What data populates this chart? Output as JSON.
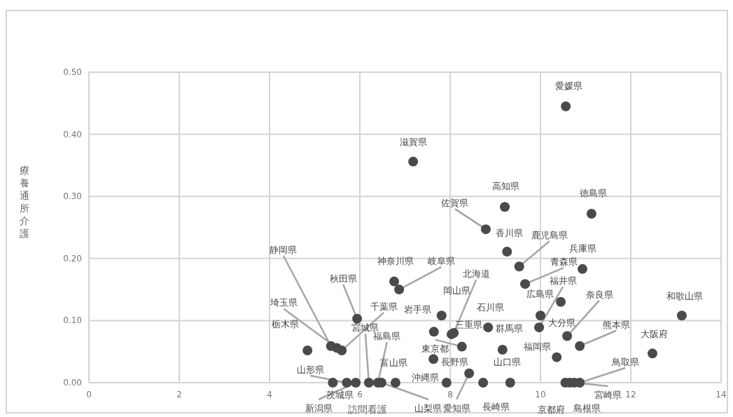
{
  "chart_data": {
    "type": "scatter",
    "xlabel": "訪問看護",
    "ylabel": "療養通所介護",
    "xlim": [
      0,
      14
    ],
    "xticks": [
      0,
      2,
      4,
      6,
      8,
      10,
      12,
      14
    ],
    "ylim": [
      0,
      0.5
    ],
    "yticks": [
      {
        "value": 0,
        "label": "0.00"
      },
      {
        "value": 0.1,
        "label": "0.10"
      },
      {
        "value": 0.2,
        "label": "0.20"
      },
      {
        "value": 0.3,
        "label": "0.30"
      },
      {
        "value": 0.4,
        "label": "0.40"
      },
      {
        "value": 0.5,
        "label": "0.50"
      }
    ],
    "grid": true,
    "marker": "circle",
    "color": "#4a4a4a",
    "x": [
      10.56,
      7.18,
      9.21,
      11.13,
      8.79,
      9.26,
      9.53,
      10.93,
      9.66,
      9.97,
      10.45,
      10.0,
      10.36,
      10.59,
      10.87,
      12.48,
      13.13,
      10.87,
      10.75,
      10.65,
      10.55,
      9.33,
      8.84,
      9.16,
      8.73,
      8.42,
      7.92,
      6.48,
      7.63,
      8.26,
      8.03,
      8.08,
      7.81,
      7.64,
      6.76,
      6.87,
      6.79,
      6.4,
      6.2,
      5.91,
      5.71,
      5.4,
      5.6,
      5.94,
      5.49,
      5.36,
      4.84
    ],
    "values": [
      0.445,
      0.356,
      0.283,
      0.272,
      0.247,
      0.211,
      0.187,
      0.183,
      0.159,
      0.089,
      0.13,
      0.108,
      0.041,
      0.075,
      0.059,
      0.047,
      0.108,
      0,
      0,
      0,
      0,
      0,
      0.089,
      0.053,
      0,
      0.015,
      0,
      0,
      0.038,
      0.058,
      0.078,
      0.08,
      0.108,
      0.082,
      0.163,
      0.15,
      0,
      0,
      0,
      0,
      0,
      0,
      0.052,
      0.103,
      0.056,
      0.059,
      0.052
    ],
    "annotations": [
      {
        "text": "愛媛県",
        "x": 10.56,
        "y": 0.445
      },
      {
        "text": "滋賀県",
        "x": 7.18,
        "y": 0.356
      },
      {
        "text": "高知県",
        "x": 9.21,
        "y": 0.283
      },
      {
        "text": "徳島県",
        "x": 11.13,
        "y": 0.272
      },
      {
        "text": "佐賀県",
        "x": 8.79,
        "y": 0.247
      },
      {
        "text": "香川県",
        "x": 9.26,
        "y": 0.211
      },
      {
        "text": "鹿児島県",
        "x": 9.53,
        "y": 0.187
      },
      {
        "text": "兵庫県",
        "x": 10.93,
        "y": 0.183
      },
      {
        "text": "青森県",
        "x": 9.66,
        "y": 0.159
      },
      {
        "text": "福井県",
        "x": 9.97,
        "y": 0.089
      },
      {
        "text": "広島県",
        "x": 10.45,
        "y": 0.13
      },
      {
        "text": "大分県",
        "x": 10.0,
        "y": 0.108
      },
      {
        "text": "福岡県",
        "x": 10.36,
        "y": 0.041
      },
      {
        "text": "奈良県",
        "x": 10.59,
        "y": 0.075
      },
      {
        "text": "熊本県",
        "x": 10.87,
        "y": 0.059
      },
      {
        "text": "大阪府",
        "x": 12.48,
        "y": 0.047
      },
      {
        "text": "和歌山県",
        "x": 13.13,
        "y": 0.108
      },
      {
        "text": "鳥取県",
        "x": 10.87,
        "y": 0
      },
      {
        "text": "宮崎県",
        "x": 10.75,
        "y": 0
      },
      {
        "text": "島根県",
        "x": 10.65,
        "y": 0
      },
      {
        "text": "京都府",
        "x": 10.55,
        "y": 0
      },
      {
        "text": "山口県",
        "x": 9.33,
        "y": 0
      },
      {
        "text": "石川県",
        "x": 8.84,
        "y": 0.089
      },
      {
        "text": "群馬県",
        "x": 9.16,
        "y": 0.053
      },
      {
        "text": "長崎県",
        "x": 8.73,
        "y": 0
      },
      {
        "text": "愛知県",
        "x": 8.42,
        "y": 0.015
      },
      {
        "text": "沖縄県",
        "x": 7.92,
        "y": 0
      },
      {
        "text": "山梨県",
        "x": 6.48,
        "y": 0
      },
      {
        "text": "長野県",
        "x": 7.63,
        "y": 0.038
      },
      {
        "text": "東京都",
        "x": 8.26,
        "y": 0.058
      },
      {
        "text": "三重県",
        "x": 8.03,
        "y": 0.078
      },
      {
        "text": "北海道",
        "x": 8.08,
        "y": 0.08
      },
      {
        "text": "岡山県",
        "x": 7.81,
        "y": 0.108
      },
      {
        "text": "岩手県",
        "x": 7.64,
        "y": 0.082
      },
      {
        "text": "神奈川県",
        "x": 6.76,
        "y": 0.163
      },
      {
        "text": "岐阜県",
        "x": 6.87,
        "y": 0.15
      },
      {
        "text": "富山県",
        "x": 6.79,
        "y": 0
      },
      {
        "text": "福島県",
        "x": 6.4,
        "y": 0
      },
      {
        "text": "宮城県",
        "x": 6.2,
        "y": 0
      },
      {
        "text": "新潟県",
        "x": 5.91,
        "y": 0
      },
      {
        "text": "山形県",
        "x": 5.71,
        "y": 0
      },
      {
        "text": "茨城県",
        "x": 5.4,
        "y": 0
      },
      {
        "text": "千葉県",
        "x": 5.6,
        "y": 0.052
      },
      {
        "text": "秋田県",
        "x": 5.94,
        "y": 0.103
      },
      {
        "text": "埼玉県",
        "x": 5.49,
        "y": 0.056
      },
      {
        "text": "静岡県",
        "x": 5.36,
        "y": 0.059
      },
      {
        "text": "栃木県",
        "x": 4.84,
        "y": 0.052
      }
    ]
  }
}
